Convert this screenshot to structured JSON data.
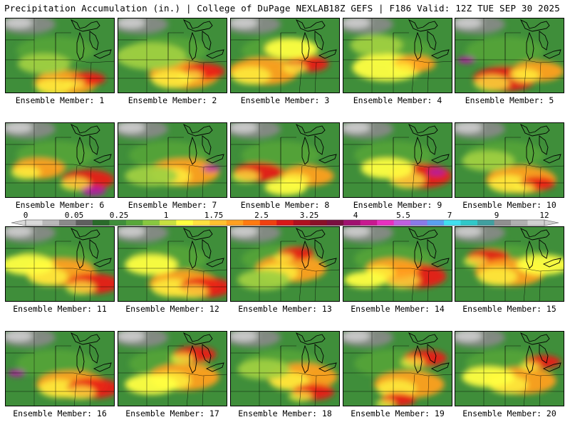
{
  "header": {
    "product": "Precipitation Accumulation (in.) | College of DuPage NEXLAB",
    "run_info": "18Z GEFS | F186 Valid: 12Z TUE SEP 30 2025"
  },
  "colorbar": {
    "tick_labels": [
      "0",
      "0.05",
      "0.25",
      "1",
      "1.75",
      "2.5",
      "3.25",
      "4",
      "5.5",
      "7",
      "9",
      "12"
    ],
    "bin_colors": [
      "#d9d9d9",
      "#b8b8b8",
      "#8a8a8a",
      "#5f5f5f",
      "#2a6b2a",
      "#3f8e3a",
      "#58a83a",
      "#88c840",
      "#c8e040",
      "#ffff40",
      "#ffe040",
      "#ffc030",
      "#ffa020",
      "#ff7a10",
      "#f04010",
      "#d81818",
      "#b01020",
      "#8a1028",
      "#7a1040",
      "#a01070",
      "#c81890",
      "#e830c0",
      "#c060e0",
      "#8a7ae8",
      "#5aa0f0",
      "#40e0f0",
      "#30c8c8",
      "#40a0a0",
      "#909090",
      "#b0b0b0",
      "#d0d0d0"
    ]
  },
  "map_colors": {
    "land_green": "#3f8e3a",
    "light_green": "#58a83a",
    "lime": "#a0d040",
    "yellow": "#ffff40",
    "orange": "#ffa020",
    "red": "#e82018",
    "dark_red": "#a01020",
    "purple": "#b020a0",
    "gray": "#8a8a8a",
    "light_gray": "#c8c8c8"
  },
  "panels": [
    {
      "label": "Ensemble Member: 1",
      "bands": [
        [
          0.55,
          0.85,
          "orange",
          0.18
        ],
        [
          0.75,
          0.8,
          "red",
          0.1
        ],
        [
          0.35,
          0.6,
          "lime",
          0.15
        ]
      ]
    },
    {
      "label": "Ensemble Member: 2",
      "bands": [
        [
          0.6,
          0.75,
          "orange",
          0.2
        ],
        [
          0.78,
          0.7,
          "red",
          0.12
        ],
        [
          0.3,
          0.5,
          "lime",
          0.2
        ]
      ]
    },
    {
      "label": "Ensemble Member: 3",
      "bands": [
        [
          0.3,
          0.7,
          "orange",
          0.2
        ],
        [
          0.7,
          0.6,
          "red",
          0.12
        ],
        [
          0.55,
          0.4,
          "yellow",
          0.15
        ]
      ]
    },
    {
      "label": "Ensemble Member: 4",
      "bands": [
        [
          0.4,
          0.65,
          "yellow",
          0.2
        ],
        [
          0.65,
          0.6,
          "orange",
          0.12
        ],
        [
          0.3,
          0.35,
          "lime",
          0.15
        ]
      ]
    },
    {
      "label": "Ensemble Member: 5",
      "bands": [
        [
          0.45,
          0.8,
          "red",
          0.18
        ],
        [
          0.75,
          0.7,
          "orange",
          0.15
        ],
        [
          0.1,
          0.55,
          "purple",
          0.05
        ]
      ]
    },
    {
      "label": "Ensemble Member: 6",
      "bands": [
        [
          0.3,
          0.6,
          "orange",
          0.15
        ],
        [
          0.75,
          0.75,
          "red",
          0.15
        ],
        [
          0.8,
          0.9,
          "purple",
          0.07
        ]
      ]
    },
    {
      "label": "Ensemble Member: 7",
      "bands": [
        [
          0.6,
          0.65,
          "orange",
          0.2
        ],
        [
          0.85,
          0.6,
          "purple",
          0.05
        ],
        [
          0.3,
          0.7,
          "lime",
          0.15
        ]
      ]
    },
    {
      "label": "Ensemble Member: 8",
      "bands": [
        [
          0.25,
          0.65,
          "red",
          0.14
        ],
        [
          0.7,
          0.7,
          "orange",
          0.15
        ],
        [
          0.5,
          0.85,
          "yellow",
          0.12
        ]
      ]
    },
    {
      "label": "Ensemble Member: 9",
      "bands": [
        [
          0.7,
          0.7,
          "red",
          0.18
        ],
        [
          0.85,
          0.65,
          "purple",
          0.05
        ],
        [
          0.4,
          0.6,
          "yellow",
          0.15
        ]
      ]
    },
    {
      "label": "Ensemble Member: 10",
      "bands": [
        [
          0.6,
          0.75,
          "orange",
          0.2
        ],
        [
          0.75,
          0.8,
          "red",
          0.1
        ],
        [
          0.3,
          0.5,
          "lime",
          0.15
        ]
      ]
    },
    {
      "label": "Ensemble Member: 11",
      "bands": [
        [
          0.5,
          0.6,
          "orange",
          0.2
        ],
        [
          0.8,
          0.75,
          "red",
          0.15
        ],
        [
          0.2,
          0.5,
          "yellow",
          0.15
        ]
      ]
    },
    {
      "label": "Ensemble Member: 12",
      "bands": [
        [
          0.6,
          0.75,
          "orange",
          0.2
        ],
        [
          0.8,
          0.8,
          "red",
          0.15
        ],
        [
          0.3,
          0.5,
          "yellow",
          0.15
        ]
      ]
    },
    {
      "label": "Ensemble Member: 13",
      "bands": [
        [
          0.55,
          0.55,
          "orange",
          0.2
        ],
        [
          0.6,
          0.35,
          "red",
          0.1
        ],
        [
          0.3,
          0.7,
          "lime",
          0.15
        ]
      ]
    },
    {
      "label": "Ensemble Member: 14",
      "bands": [
        [
          0.65,
          0.65,
          "red",
          0.18
        ],
        [
          0.45,
          0.55,
          "orange",
          0.15
        ],
        [
          0.2,
          0.7,
          "yellow",
          0.12
        ]
      ]
    },
    {
      "label": "Ensemble Member: 15",
      "bands": [
        [
          0.3,
          0.4,
          "red",
          0.12
        ],
        [
          0.5,
          0.6,
          "orange",
          0.2
        ],
        [
          0.8,
          0.5,
          "yellow",
          0.15
        ]
      ]
    },
    {
      "label": "Ensemble Member: 16",
      "bands": [
        [
          0.6,
          0.7,
          "orange",
          0.2
        ],
        [
          0.8,
          0.75,
          "red",
          0.15
        ],
        [
          0.1,
          0.55,
          "purple",
          0.05
        ]
      ]
    },
    {
      "label": "Ensemble Member: 17",
      "bands": [
        [
          0.7,
          0.3,
          "red",
          0.12
        ],
        [
          0.6,
          0.6,
          "orange",
          0.2
        ],
        [
          0.3,
          0.7,
          "yellow",
          0.15
        ]
      ]
    },
    {
      "label": "Ensemble Member: 18",
      "bands": [
        [
          0.65,
          0.6,
          "orange",
          0.2
        ],
        [
          0.75,
          0.8,
          "red",
          0.12
        ],
        [
          0.3,
          0.5,
          "lime",
          0.15
        ]
      ]
    },
    {
      "label": "Ensemble Member: 19",
      "bands": [
        [
          0.75,
          0.35,
          "red",
          0.12
        ],
        [
          0.6,
          0.7,
          "orange",
          0.2
        ],
        [
          0.5,
          0.9,
          "red",
          0.1
        ]
      ]
    },
    {
      "label": "Ensemble Member: 20",
      "bands": [
        [
          0.6,
          0.65,
          "orange",
          0.2
        ],
        [
          0.8,
          0.4,
          "red",
          0.1
        ],
        [
          0.3,
          0.6,
          "yellow",
          0.15
        ]
      ]
    }
  ]
}
